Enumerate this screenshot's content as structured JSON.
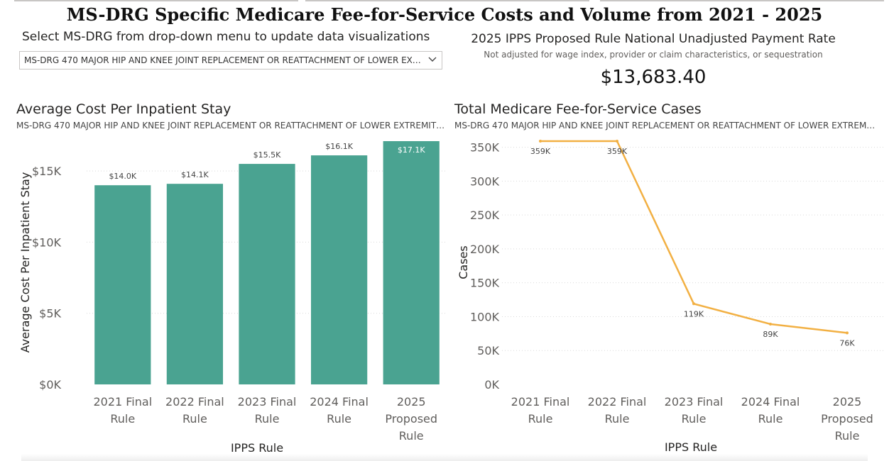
{
  "page": {
    "title": "MS-DRG Specific Medicare Fee-for-Service Costs and Volume from 2021 - 2025"
  },
  "selector": {
    "label": "Select MS-DRG from drop-down menu to update data visualizations",
    "selected_value": "MS-DRG 470 MAJOR HIP AND KNEE JOINT REPLACEMENT OR REATTACHMENT OF LOWER EXTRE...",
    "icon": "chevron-down-icon"
  },
  "payment_rate": {
    "title": "2025 IPPS Proposed Rule National Unadjusted Payment Rate",
    "subtitle": "Not adjusted for wage index, provider or claim characteristics, or sequestration",
    "value": "$13,683.40"
  },
  "colors": {
    "bar": "#4aa391",
    "line": "#f2b043",
    "grid": "#d9d9d9"
  },
  "chart_data": [
    {
      "type": "bar",
      "title": "Average Cost Per Inpatient Stay",
      "subtitle": "MS-DRG 470 MAJOR HIP AND KNEE JOINT REPLACEMENT OR REATTACHMENT OF LOWER EXTREMITY W...",
      "categories": [
        [
          "2021 Final",
          "Rule"
        ],
        [
          "2022 Final",
          "Rule"
        ],
        [
          "2023 Final",
          "Rule"
        ],
        [
          "2024 Final",
          "Rule"
        ],
        [
          "2025",
          "Proposed",
          "Rule"
        ]
      ],
      "values": [
        14000,
        14100,
        15500,
        16100,
        17100
      ],
      "data_labels": [
        "$14.0K",
        "$14.1K",
        "$15.5K",
        "$16.1K",
        "$17.1K"
      ],
      "xlabel": "IPPS Rule",
      "ylabel": "Average Cost Per Inpatient Stay",
      "ylim": [
        0,
        17100
      ],
      "yticks": [
        0,
        5000,
        10000,
        15000
      ],
      "ytick_labels": [
        "$0K",
        "$5K",
        "$10K",
        "$15K"
      ],
      "grid": true
    },
    {
      "type": "line",
      "title": "Total Medicare Fee-for-Service Cases",
      "subtitle": "MS-DRG 470 MAJOR HIP AND KNEE JOINT REPLACEMENT OR REATTACHMENT OF LOWER EXTREMITY ...",
      "categories": [
        [
          "2021 Final",
          "Rule"
        ],
        [
          "2022 Final",
          "Rule"
        ],
        [
          "2023 Final",
          "Rule"
        ],
        [
          "2024 Final",
          "Rule"
        ],
        [
          "2025",
          "Proposed",
          "Rule"
        ]
      ],
      "values": [
        359000,
        359000,
        119000,
        89000,
        76000
      ],
      "data_labels": [
        "359K",
        "359K",
        "119K",
        "89K",
        "76K"
      ],
      "xlabel": "IPPS Rule",
      "ylabel": "Cases",
      "ylim": [
        0,
        359000
      ],
      "yticks": [
        0,
        50000,
        100000,
        150000,
        200000,
        250000,
        300000,
        350000
      ],
      "ytick_labels": [
        "0K",
        "50K",
        "100K",
        "150K",
        "200K",
        "250K",
        "300K",
        "350K"
      ],
      "grid": true
    }
  ]
}
